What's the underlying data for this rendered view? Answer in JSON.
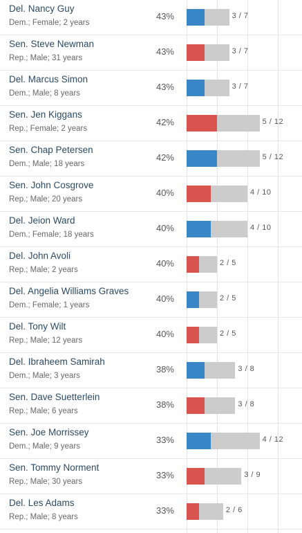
{
  "colors": {
    "dem": "#3a87c8",
    "rep": "#d9534f",
    "bar_bg": "#cccccc"
  },
  "chart_data": {
    "type": "bar",
    "title": "",
    "xlabel": "",
    "ylabel": "",
    "rows": [
      {
        "name": "Del. Nancy Guy",
        "details": "Dem.; Female; 2 years",
        "pct": "43%",
        "party": "dem",
        "votes": 3,
        "total": 7,
        "label": "3 / 7"
      },
      {
        "name": "Sen. Steve Newman",
        "details": "Rep.; Male; 31 years",
        "pct": "43%",
        "party": "rep",
        "votes": 3,
        "total": 7,
        "label": "3 / 7"
      },
      {
        "name": "Del. Marcus Simon",
        "details": "Dem.; Male; 8 years",
        "pct": "43%",
        "party": "dem",
        "votes": 3,
        "total": 7,
        "label": "3 / 7"
      },
      {
        "name": "Sen. Jen Kiggans",
        "details": "Rep.; Female; 2 years",
        "pct": "42%",
        "party": "rep",
        "votes": 5,
        "total": 12,
        "label": "5 / 12"
      },
      {
        "name": "Sen. Chap Petersen",
        "details": "Dem.; Male; 18 years",
        "pct": "42%",
        "party": "dem",
        "votes": 5,
        "total": 12,
        "label": "5 / 12"
      },
      {
        "name": "Sen. John Cosgrove",
        "details": "Rep.; Male; 20 years",
        "pct": "40%",
        "party": "rep",
        "votes": 4,
        "total": 10,
        "label": "4 / 10"
      },
      {
        "name": "Del. Jeion Ward",
        "details": "Dem.; Female; 18 years",
        "pct": "40%",
        "party": "dem",
        "votes": 4,
        "total": 10,
        "label": "4 / 10"
      },
      {
        "name": "Del. John Avoli",
        "details": "Rep.; Male; 2 years",
        "pct": "40%",
        "party": "rep",
        "votes": 2,
        "total": 5,
        "label": "2 / 5"
      },
      {
        "name": "Del. Angelia Williams Graves",
        "details": "Dem.; Female; 1 years",
        "pct": "40%",
        "party": "dem",
        "votes": 2,
        "total": 5,
        "label": "2 / 5"
      },
      {
        "name": "Del. Tony Wilt",
        "details": "Rep.; Male; 12 years",
        "pct": "40%",
        "party": "rep",
        "votes": 2,
        "total": 5,
        "label": "2 / 5"
      },
      {
        "name": "Del. Ibraheem Samirah",
        "details": "Dem.; Male; 3 years",
        "pct": "38%",
        "party": "dem",
        "votes": 3,
        "total": 8,
        "label": "3 / 8"
      },
      {
        "name": "Sen. Dave Suetterlein",
        "details": "Rep.; Male; 6 years",
        "pct": "38%",
        "party": "rep",
        "votes": 3,
        "total": 8,
        "label": "3 / 8"
      },
      {
        "name": "Sen. Joe Morrissey",
        "details": "Dem.; Male; 9 years",
        "pct": "33%",
        "party": "dem",
        "votes": 4,
        "total": 12,
        "label": "4 / 12"
      },
      {
        "name": "Sen. Tommy Norment",
        "details": "Rep.; Male; 30 years",
        "pct": "33%",
        "party": "rep",
        "votes": 3,
        "total": 9,
        "label": "3 / 9"
      },
      {
        "name": "Del. Les Adams",
        "details": "Rep.; Male; 8 years",
        "pct": "33%",
        "party": "rep",
        "votes": 2,
        "total": 6,
        "label": "2 / 6"
      }
    ]
  }
}
